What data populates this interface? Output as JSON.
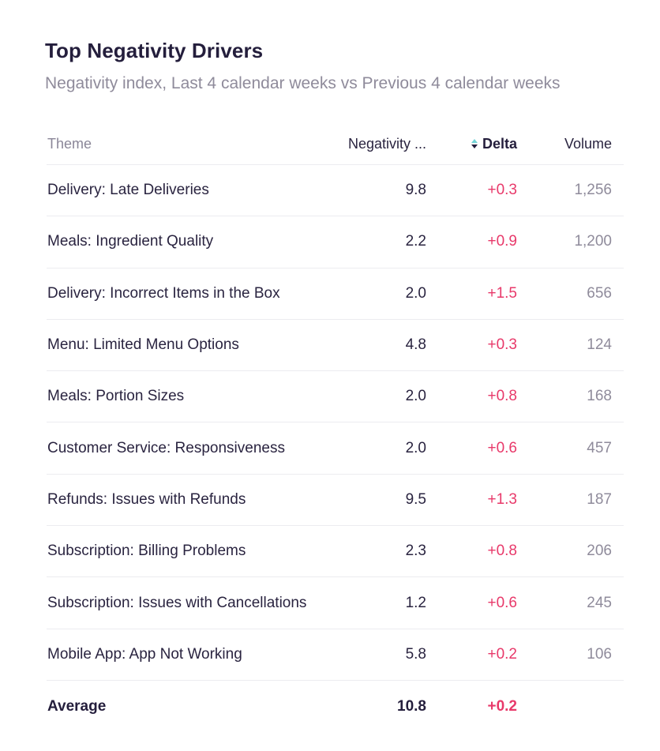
{
  "card": {
    "title": "Top Negativity Drivers",
    "subtitle": "Negativity index, Last 4 calendar weeks vs Previous 4 calendar weeks"
  },
  "table": {
    "headers": {
      "theme": "Theme",
      "negativity": "Negativity ...",
      "delta": "Delta",
      "volume": "Volume"
    },
    "rows": [
      {
        "theme": "Delivery: Late Deliveries",
        "negativity": "9.8",
        "delta": "+0.3",
        "volume": "1,256"
      },
      {
        "theme": "Meals: Ingredient Quality",
        "negativity": "2.2",
        "delta": "+0.9",
        "volume": "1,200"
      },
      {
        "theme": "Delivery: Incorrect Items in the Box",
        "negativity": "2.0",
        "delta": "+1.5",
        "volume": "656"
      },
      {
        "theme": "Menu: Limited Menu Options",
        "negativity": "4.8",
        "delta": "+0.3",
        "volume": "124"
      },
      {
        "theme": "Meals: Portion Sizes",
        "negativity": "2.0",
        "delta": "+0.8",
        "volume": "168"
      },
      {
        "theme": "Customer Service: Responsiveness",
        "negativity": "2.0",
        "delta": "+0.6",
        "volume": "457"
      },
      {
        "theme": "Refunds: Issues with Refunds",
        "negativity": "9.5",
        "delta": "+1.3",
        "volume": "187"
      },
      {
        "theme": "Subscription: Billing Problems",
        "negativity": "2.3",
        "delta": "+0.8",
        "volume": "206"
      },
      {
        "theme": "Subscription: Issues with Cancellations",
        "negativity": "1.2",
        "delta": "+0.6",
        "volume": "245"
      },
      {
        "theme": "Mobile App: App Not Working",
        "negativity": "5.8",
        "delta": "+0.2",
        "volume": "106"
      }
    ],
    "average": {
      "label": "Average",
      "negativity": "10.8",
      "delta": "+0.2"
    }
  },
  "colors": {
    "title": "#241e3c",
    "subtitle": "#8f8b9b",
    "delta": "#e8396a",
    "sort_up": "#73d3d6",
    "divider": "#ececf0"
  },
  "icons": {
    "sort": "sort-icon"
  }
}
